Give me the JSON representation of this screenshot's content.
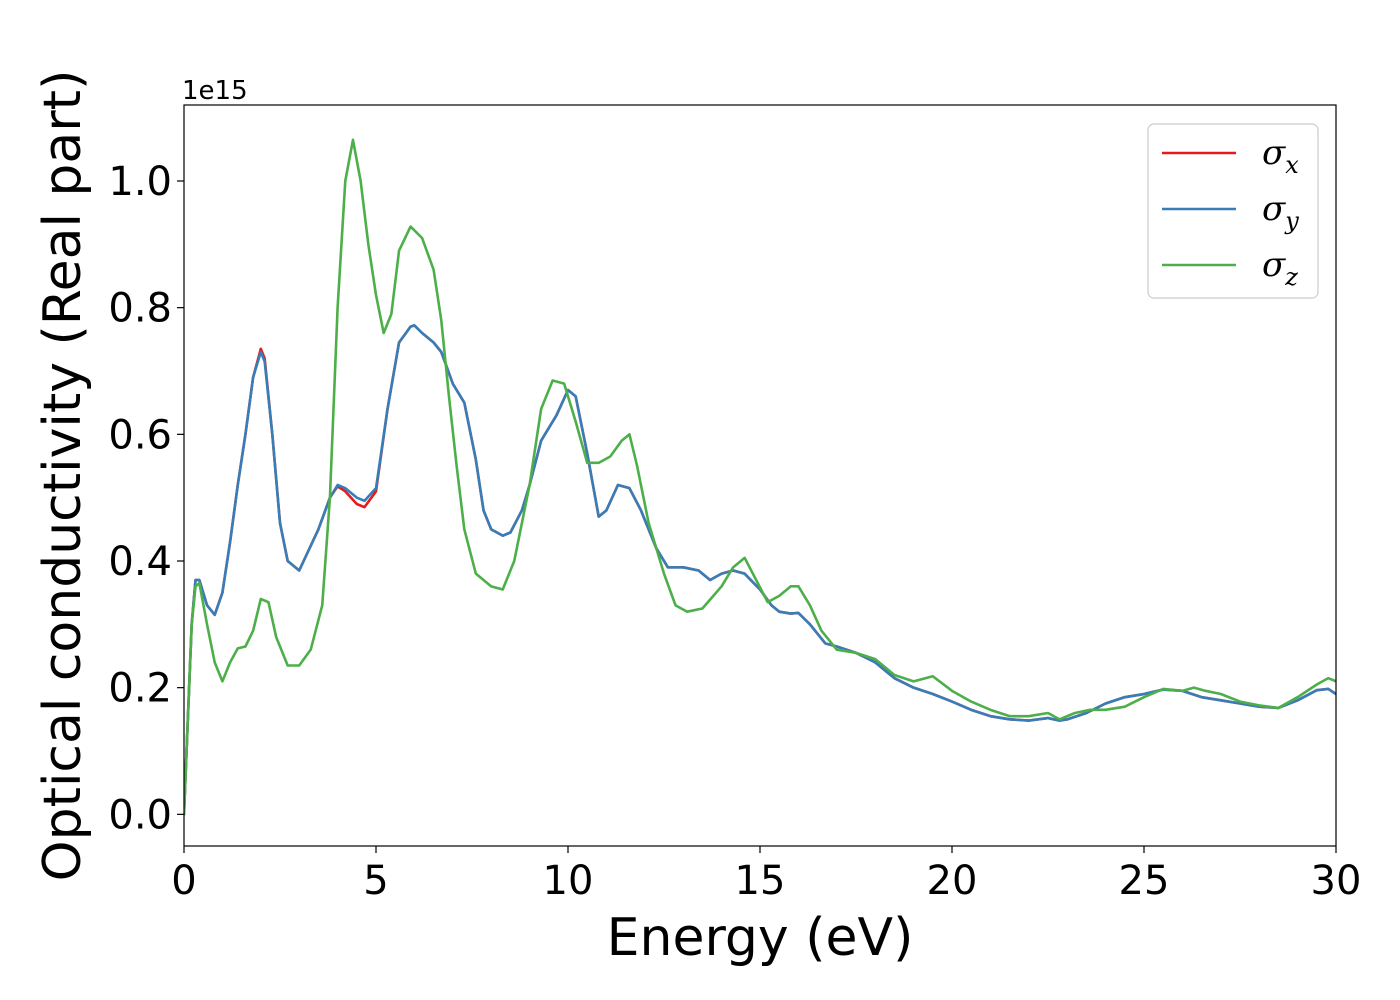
{
  "chart_data": {
    "type": "line",
    "xlabel": "Energy (eV)",
    "ylabel": "Optical conductivity (Real part)",
    "y_offset_text": "1e15",
    "xlim": [
      0,
      30
    ],
    "ylim": [
      -0.05,
      1.12
    ],
    "x_ticks": [
      0,
      5,
      10,
      15,
      20,
      25,
      30
    ],
    "x_tick_labels": [
      "0",
      "5",
      "10",
      "15",
      "20",
      "25",
      "30"
    ],
    "y_ticks": [
      0.0,
      0.2,
      0.4,
      0.6,
      0.8,
      1.0
    ],
    "y_tick_labels": [
      "0.0",
      "0.2",
      "0.4",
      "0.6",
      "0.8",
      "1.0"
    ],
    "grid": false,
    "legend_position": "top-right",
    "series": [
      {
        "name": "σx",
        "symbol": "σ",
        "subscript": "x",
        "color": "#e41a1c",
        "points": [
          [
            0,
            0
          ],
          [
            0.1,
            0.15
          ],
          [
            0.2,
            0.3
          ],
          [
            0.3,
            0.37
          ],
          [
            0.4,
            0.37
          ],
          [
            0.6,
            0.33
          ],
          [
            0.8,
            0.315
          ],
          [
            1.0,
            0.35
          ],
          [
            1.2,
            0.43
          ],
          [
            1.4,
            0.52
          ],
          [
            1.6,
            0.6
          ],
          [
            1.8,
            0.69
          ],
          [
            2.0,
            0.735
          ],
          [
            2.1,
            0.72
          ],
          [
            2.3,
            0.6
          ],
          [
            2.5,
            0.46
          ],
          [
            2.7,
            0.4
          ],
          [
            3.0,
            0.385
          ],
          [
            3.5,
            0.45
          ],
          [
            3.8,
            0.5
          ],
          [
            4.0,
            0.518
          ],
          [
            4.2,
            0.51
          ],
          [
            4.5,
            0.49
          ],
          [
            4.7,
            0.485
          ],
          [
            5.0,
            0.51
          ],
          [
            5.3,
            0.64
          ],
          [
            5.6,
            0.745
          ],
          [
            5.9,
            0.77
          ],
          [
            6.0,
            0.772
          ],
          [
            6.2,
            0.76
          ],
          [
            6.5,
            0.745
          ],
          [
            6.7,
            0.73
          ],
          [
            7.0,
            0.68
          ],
          [
            7.3,
            0.65
          ],
          [
            7.6,
            0.56
          ],
          [
            7.8,
            0.48
          ],
          [
            8.0,
            0.45
          ],
          [
            8.3,
            0.44
          ],
          [
            8.5,
            0.445
          ],
          [
            8.8,
            0.48
          ],
          [
            9.0,
            0.52
          ],
          [
            9.3,
            0.59
          ],
          [
            9.7,
            0.63
          ],
          [
            10.0,
            0.67
          ],
          [
            10.2,
            0.66
          ],
          [
            10.5,
            0.57
          ],
          [
            10.8,
            0.47
          ],
          [
            11.0,
            0.48
          ],
          [
            11.3,
            0.52
          ],
          [
            11.6,
            0.515
          ],
          [
            11.9,
            0.48
          ],
          [
            12.3,
            0.42
          ],
          [
            12.6,
            0.39
          ],
          [
            13.0,
            0.39
          ],
          [
            13.4,
            0.385
          ],
          [
            13.7,
            0.37
          ],
          [
            14.0,
            0.38
          ],
          [
            14.3,
            0.385
          ],
          [
            14.6,
            0.38
          ],
          [
            15.0,
            0.355
          ],
          [
            15.3,
            0.33
          ],
          [
            15.5,
            0.32
          ],
          [
            15.8,
            0.317
          ],
          [
            16.0,
            0.318
          ],
          [
            16.3,
            0.3
          ],
          [
            16.7,
            0.27
          ],
          [
            17.0,
            0.265
          ],
          [
            17.5,
            0.255
          ],
          [
            18.0,
            0.24
          ],
          [
            18.5,
            0.215
          ],
          [
            19.0,
            0.2
          ],
          [
            19.5,
            0.19
          ],
          [
            20.0,
            0.178
          ],
          [
            20.5,
            0.165
          ],
          [
            21.0,
            0.155
          ],
          [
            21.5,
            0.15
          ],
          [
            22.0,
            0.148
          ],
          [
            22.5,
            0.152
          ],
          [
            22.8,
            0.148
          ],
          [
            23.0,
            0.15
          ],
          [
            23.5,
            0.16
          ],
          [
            24.0,
            0.175
          ],
          [
            24.5,
            0.185
          ],
          [
            25.0,
            0.19
          ],
          [
            25.5,
            0.197
          ],
          [
            26.0,
            0.195
          ],
          [
            26.5,
            0.185
          ],
          [
            27.0,
            0.18
          ],
          [
            27.5,
            0.175
          ],
          [
            28.0,
            0.17
          ],
          [
            28.5,
            0.168
          ],
          [
            29.0,
            0.18
          ],
          [
            29.5,
            0.196
          ],
          [
            29.8,
            0.198
          ],
          [
            30.0,
            0.19
          ]
        ]
      },
      {
        "name": "σy",
        "symbol": "σ",
        "subscript": "y",
        "color": "#377eb8",
        "points": [
          [
            0,
            0
          ],
          [
            0.1,
            0.15
          ],
          [
            0.2,
            0.3
          ],
          [
            0.3,
            0.37
          ],
          [
            0.4,
            0.37
          ],
          [
            0.6,
            0.33
          ],
          [
            0.8,
            0.315
          ],
          [
            1.0,
            0.35
          ],
          [
            1.2,
            0.43
          ],
          [
            1.4,
            0.52
          ],
          [
            1.6,
            0.6
          ],
          [
            1.8,
            0.69
          ],
          [
            2.0,
            0.73
          ],
          [
            2.1,
            0.715
          ],
          [
            2.3,
            0.6
          ],
          [
            2.5,
            0.46
          ],
          [
            2.7,
            0.4
          ],
          [
            3.0,
            0.385
          ],
          [
            3.5,
            0.45
          ],
          [
            3.8,
            0.5
          ],
          [
            4.0,
            0.52
          ],
          [
            4.2,
            0.515
          ],
          [
            4.5,
            0.5
          ],
          [
            4.7,
            0.495
          ],
          [
            5.0,
            0.515
          ],
          [
            5.3,
            0.64
          ],
          [
            5.6,
            0.745
          ],
          [
            5.9,
            0.77
          ],
          [
            6.0,
            0.772
          ],
          [
            6.2,
            0.76
          ],
          [
            6.5,
            0.745
          ],
          [
            6.7,
            0.73
          ],
          [
            7.0,
            0.68
          ],
          [
            7.3,
            0.65
          ],
          [
            7.6,
            0.56
          ],
          [
            7.8,
            0.48
          ],
          [
            8.0,
            0.45
          ],
          [
            8.3,
            0.44
          ],
          [
            8.5,
            0.445
          ],
          [
            8.8,
            0.48
          ],
          [
            9.0,
            0.52
          ],
          [
            9.3,
            0.59
          ],
          [
            9.7,
            0.63
          ],
          [
            10.0,
            0.67
          ],
          [
            10.2,
            0.66
          ],
          [
            10.5,
            0.57
          ],
          [
            10.8,
            0.47
          ],
          [
            11.0,
            0.48
          ],
          [
            11.3,
            0.52
          ],
          [
            11.6,
            0.515
          ],
          [
            11.9,
            0.48
          ],
          [
            12.3,
            0.42
          ],
          [
            12.6,
            0.39
          ],
          [
            13.0,
            0.39
          ],
          [
            13.4,
            0.385
          ],
          [
            13.7,
            0.37
          ],
          [
            14.0,
            0.38
          ],
          [
            14.3,
            0.385
          ],
          [
            14.6,
            0.38
          ],
          [
            15.0,
            0.355
          ],
          [
            15.3,
            0.33
          ],
          [
            15.5,
            0.32
          ],
          [
            15.8,
            0.317
          ],
          [
            16.0,
            0.318
          ],
          [
            16.3,
            0.3
          ],
          [
            16.7,
            0.27
          ],
          [
            17.0,
            0.265
          ],
          [
            17.5,
            0.255
          ],
          [
            18.0,
            0.24
          ],
          [
            18.5,
            0.215
          ],
          [
            19.0,
            0.2
          ],
          [
            19.5,
            0.19
          ],
          [
            20.0,
            0.178
          ],
          [
            20.5,
            0.165
          ],
          [
            21.0,
            0.155
          ],
          [
            21.5,
            0.15
          ],
          [
            22.0,
            0.148
          ],
          [
            22.5,
            0.152
          ],
          [
            22.8,
            0.148
          ],
          [
            23.0,
            0.15
          ],
          [
            23.5,
            0.16
          ],
          [
            24.0,
            0.175
          ],
          [
            24.5,
            0.185
          ],
          [
            25.0,
            0.19
          ],
          [
            25.5,
            0.197
          ],
          [
            26.0,
            0.195
          ],
          [
            26.5,
            0.185
          ],
          [
            27.0,
            0.18
          ],
          [
            27.5,
            0.175
          ],
          [
            28.0,
            0.17
          ],
          [
            28.5,
            0.168
          ],
          [
            29.0,
            0.18
          ],
          [
            29.5,
            0.196
          ],
          [
            29.8,
            0.198
          ],
          [
            30.0,
            0.19
          ]
        ]
      },
      {
        "name": "σz",
        "symbol": "σ",
        "subscript": "z",
        "color": "#4daf4a",
        "points": [
          [
            0,
            0
          ],
          [
            0.1,
            0.15
          ],
          [
            0.2,
            0.3
          ],
          [
            0.3,
            0.36
          ],
          [
            0.4,
            0.365
          ],
          [
            0.6,
            0.3
          ],
          [
            0.8,
            0.24
          ],
          [
            1.0,
            0.21
          ],
          [
            1.2,
            0.24
          ],
          [
            1.4,
            0.262
          ],
          [
            1.6,
            0.265
          ],
          [
            1.8,
            0.29
          ],
          [
            2.0,
            0.34
          ],
          [
            2.2,
            0.335
          ],
          [
            2.4,
            0.28
          ],
          [
            2.7,
            0.235
          ],
          [
            3.0,
            0.235
          ],
          [
            3.3,
            0.26
          ],
          [
            3.6,
            0.33
          ],
          [
            3.8,
            0.5
          ],
          [
            4.0,
            0.8
          ],
          [
            4.2,
            1.0
          ],
          [
            4.4,
            1.065
          ],
          [
            4.6,
            1.0
          ],
          [
            4.8,
            0.9
          ],
          [
            5.0,
            0.82
          ],
          [
            5.2,
            0.76
          ],
          [
            5.4,
            0.79
          ],
          [
            5.6,
            0.89
          ],
          [
            5.9,
            0.928
          ],
          [
            6.2,
            0.91
          ],
          [
            6.5,
            0.86
          ],
          [
            6.7,
            0.78
          ],
          [
            6.9,
            0.66
          ],
          [
            7.1,
            0.55
          ],
          [
            7.3,
            0.45
          ],
          [
            7.6,
            0.38
          ],
          [
            8.0,
            0.36
          ],
          [
            8.3,
            0.355
          ],
          [
            8.6,
            0.4
          ],
          [
            9.0,
            0.52
          ],
          [
            9.3,
            0.64
          ],
          [
            9.6,
            0.685
          ],
          [
            9.9,
            0.68
          ],
          [
            10.2,
            0.62
          ],
          [
            10.5,
            0.555
          ],
          [
            10.8,
            0.555
          ],
          [
            11.1,
            0.565
          ],
          [
            11.4,
            0.59
          ],
          [
            11.6,
            0.6
          ],
          [
            11.8,
            0.55
          ],
          [
            12.1,
            0.46
          ],
          [
            12.5,
            0.38
          ],
          [
            12.8,
            0.33
          ],
          [
            13.1,
            0.32
          ],
          [
            13.5,
            0.325
          ],
          [
            14.0,
            0.36
          ],
          [
            14.3,
            0.39
          ],
          [
            14.6,
            0.405
          ],
          [
            14.9,
            0.37
          ],
          [
            15.2,
            0.335
          ],
          [
            15.5,
            0.345
          ],
          [
            15.8,
            0.36
          ],
          [
            16.0,
            0.36
          ],
          [
            16.3,
            0.33
          ],
          [
            16.6,
            0.29
          ],
          [
            17.0,
            0.26
          ],
          [
            17.5,
            0.255
          ],
          [
            18.0,
            0.245
          ],
          [
            18.5,
            0.22
          ],
          [
            19.0,
            0.21
          ],
          [
            19.5,
            0.218
          ],
          [
            20.0,
            0.195
          ],
          [
            20.5,
            0.178
          ],
          [
            21.0,
            0.165
          ],
          [
            21.5,
            0.155
          ],
          [
            22.0,
            0.155
          ],
          [
            22.5,
            0.16
          ],
          [
            22.8,
            0.15
          ],
          [
            23.2,
            0.16
          ],
          [
            23.6,
            0.165
          ],
          [
            24.0,
            0.165
          ],
          [
            24.5,
            0.17
          ],
          [
            25.0,
            0.185
          ],
          [
            25.5,
            0.198
          ],
          [
            26.0,
            0.195
          ],
          [
            26.3,
            0.2
          ],
          [
            26.6,
            0.195
          ],
          [
            27.0,
            0.19
          ],
          [
            27.5,
            0.178
          ],
          [
            28.0,
            0.172
          ],
          [
            28.5,
            0.168
          ],
          [
            29.0,
            0.185
          ],
          [
            29.5,
            0.205
          ],
          [
            29.8,
            0.215
          ],
          [
            30.0,
            0.21
          ]
        ]
      }
    ]
  }
}
